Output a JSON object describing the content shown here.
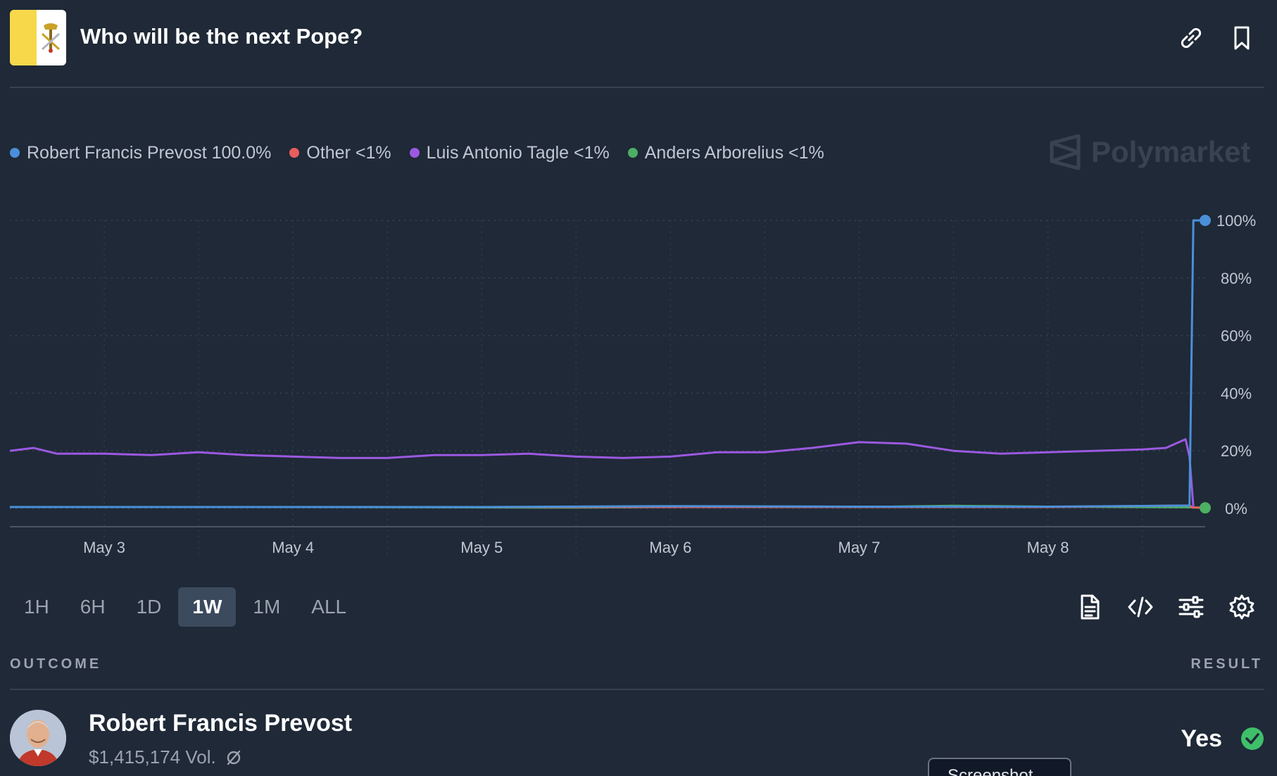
{
  "header": {
    "title": "Who will be the next Pope?",
    "flag_icon": "vatican-flag-icon",
    "link_icon": "link-icon",
    "bookmark_icon": "bookmark-icon"
  },
  "legend": [
    {
      "label": "Robert Francis Prevost 100.0%",
      "color": "#4a90d9"
    },
    {
      "label": "Other <1%",
      "color": "#e85d5d"
    },
    {
      "label": "Luis Antonio Tagle <1%",
      "color": "#9b59e0"
    },
    {
      "label": "Anders Arborelius <1%",
      "color": "#4caf63"
    }
  ],
  "watermark": {
    "text": "Polymarket",
    "icon": "polymarket-logo-icon"
  },
  "chart_data": {
    "type": "line",
    "x_tick_labels": [
      "May 3",
      "May 4",
      "May 5",
      "May 6",
      "May 7",
      "May 8"
    ],
    "y_tick_labels": [
      "100%",
      "80%",
      "60%",
      "40%",
      "20%",
      "0%"
    ],
    "ylim": [
      0,
      100
    ],
    "xlim": [
      "May 2 12:00",
      "May 8 20:00"
    ],
    "grid": true,
    "legend_placement": "top-left",
    "series": [
      {
        "name": "Robert Francis Prevost",
        "color": "#4a90d9",
        "x": [
          "May 2 12:00",
          "May 3 00:00",
          "May 4 00:00",
          "May 5 00:00",
          "May 6 00:00",
          "May 7 00:00",
          "May 8 00:00",
          "May 8 18:00",
          "May 8 18:30",
          "May 8 20:00"
        ],
        "y": [
          0.5,
          0.5,
          0.5,
          0.5,
          0.8,
          0.6,
          0.6,
          1.0,
          100,
          100
        ]
      },
      {
        "name": "Other",
        "color": "#e85d5d",
        "x": [
          "May 2 12:00",
          "May 4 00:00",
          "May 6 00:00",
          "May 8 00:00",
          "May 8 18:00",
          "May 8 18:30",
          "May 8 20:00"
        ],
        "y": [
          0.5,
          0.5,
          0.5,
          0.5,
          1.0,
          0.3,
          0.3
        ]
      },
      {
        "name": "Luis Antonio Tagle",
        "color": "#9b59e0",
        "x": [
          "May 2 12:00",
          "May 2 15:00",
          "May 2 18:00",
          "May 3 00:00",
          "May 3 06:00",
          "May 3 12:00",
          "May 3 18:00",
          "May 4 00:00",
          "May 4 06:00",
          "May 4 12:00",
          "May 4 18:00",
          "May 5 00:00",
          "May 5 06:00",
          "May 5 12:00",
          "May 5 18:00",
          "May 6 00:00",
          "May 6 06:00",
          "May 6 12:00",
          "May 6 18:00",
          "May 7 00:00",
          "May 7 06:00",
          "May 7 12:00",
          "May 7 18:00",
          "May 8 00:00",
          "May 8 06:00",
          "May 8 12:00",
          "May 8 15:00",
          "May 8 17:30",
          "May 8 18:00",
          "May 8 18:30"
        ],
        "y": [
          20,
          21,
          19,
          19,
          18.5,
          19.5,
          18.5,
          18,
          17.5,
          17.5,
          18.5,
          18.5,
          19,
          18,
          17.5,
          18,
          19.5,
          19.5,
          21,
          23,
          22.5,
          20,
          19,
          19.5,
          20,
          20.5,
          21,
          24,
          18,
          0.5
        ]
      },
      {
        "name": "Anders Arborelius",
        "color": "#4caf63",
        "x": [
          "May 2 12:00",
          "May 4 00:00",
          "May 5 12:00",
          "May 6 00:00",
          "May 7 00:00",
          "May 7 12:00",
          "May 8 00:00",
          "May 8 18:00",
          "May 8 20:00"
        ],
        "y": [
          0.5,
          0.5,
          0.3,
          0.5,
          0.5,
          0.9,
          0.6,
          0.4,
          0.2
        ]
      }
    ]
  },
  "ranges": [
    {
      "label": "1H",
      "active": false
    },
    {
      "label": "6H",
      "active": false
    },
    {
      "label": "1D",
      "active": false
    },
    {
      "label": "1W",
      "active": true
    },
    {
      "label": "1M",
      "active": false
    },
    {
      "label": "ALL",
      "active": false
    }
  ],
  "tools": [
    "document-icon",
    "embed-code-icon",
    "sliders-icon",
    "gear-icon"
  ],
  "outcomes_header": {
    "outcome": "OUTCOME",
    "result": "RESULT"
  },
  "outcome": {
    "name": "Robert Francis Prevost",
    "volume": "$1,415,174 Vol.",
    "result": "Yes",
    "result_icon": "check-circle-icon",
    "volume_icon": "reset-icon",
    "avatar": "candidate-avatar"
  },
  "tooltip": {
    "label": "Screenshot"
  }
}
